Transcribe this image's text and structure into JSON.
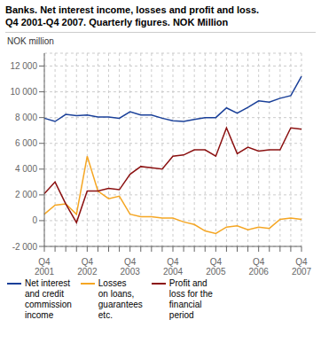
{
  "chart_data": {
    "type": "line",
    "title": "Banks. Net interest income, losses and profit and loss.\nQ4 2001-Q4 2007. Quarterly figures. NOK Million",
    "ylabel": "NOK million",
    "categories": [
      "Q4\n2001",
      null,
      null,
      null,
      "Q4\n2002",
      null,
      null,
      null,
      "Q4\n2003",
      null,
      null,
      null,
      "Q4\n2004",
      null,
      null,
      null,
      "Q4\n2005",
      null,
      null,
      null,
      "Q4\n2006",
      null,
      null,
      null,
      "Q4\n2007"
    ],
    "series": [
      {
        "name": "Net interest\nand credit\ncommission\nincome",
        "color": "#1a4099",
        "values": [
          7950,
          7700,
          8250,
          8150,
          8200,
          8050,
          8050,
          7950,
          8450,
          8200,
          8200,
          7950,
          7750,
          7700,
          7850,
          8000,
          8000,
          8750,
          8350,
          8800,
          9300,
          9200,
          9500,
          9700,
          11200
        ]
      },
      {
        "name": "Losses\non loans,\nguarantees\netc.",
        "color": "#f5a623",
        "values": [
          500,
          1200,
          1300,
          500,
          5000,
          2300,
          1700,
          1900,
          500,
          300,
          300,
          200,
          200,
          -100,
          -300,
          -800,
          -1000,
          -500,
          -400,
          -700,
          -500,
          -600,
          100,
          200,
          100
        ]
      },
      {
        "name": "Profit and\nloss for the\nfinancial\nperiod",
        "color": "#8b1010",
        "values": [
          2100,
          3000,
          1300,
          -150,
          2300,
          2300,
          2500,
          2400,
          3600,
          4200,
          4100,
          4000,
          5000,
          5100,
          5500,
          5500,
          5000,
          7200,
          5200,
          5700,
          5400,
          5500,
          5500,
          7200,
          7100
        ]
      }
    ],
    "ylim": [
      -2000,
      13000
    ],
    "yticks": [
      {
        "value": -2000,
        "label": "-2 000"
      },
      0,
      {
        "value": 2000,
        "label": "2 000"
      },
      {
        "value": 4000,
        "label": "4 000"
      },
      {
        "value": 6000,
        "label": "6 000"
      },
      {
        "value": 8000,
        "label": "8 000"
      },
      {
        "value": 10000,
        "label": "10 000"
      },
      {
        "value": 12000,
        "label": "12 000"
      }
    ],
    "grid": true,
    "legend": "bottom"
  }
}
